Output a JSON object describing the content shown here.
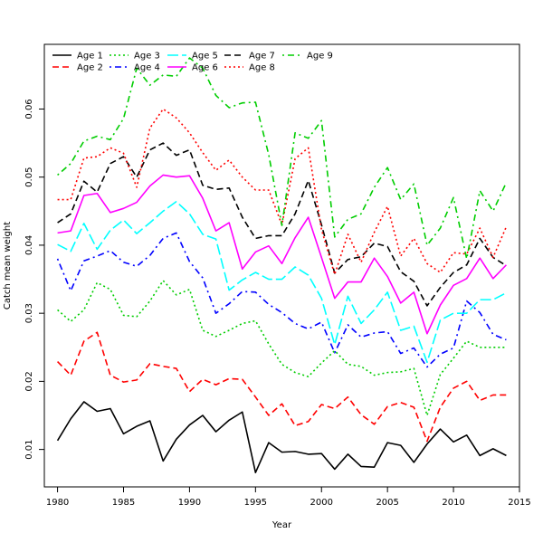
{
  "chart_data": {
    "type": "line",
    "title": "",
    "xlabel": "Year",
    "ylabel": "Catch mean weight",
    "xlim": [
      1979,
      2015
    ],
    "ylim": [
      0.0045,
      0.0695
    ],
    "x_ticks": [
      1980,
      1985,
      1990,
      1995,
      2000,
      2005,
      2010,
      2015
    ],
    "y_ticks": [
      0.01,
      0.02,
      0.03,
      0.04,
      0.05,
      0.06
    ],
    "legend_position": "top-left",
    "grid": false,
    "x": [
      1980,
      1981,
      1982,
      1983,
      1984,
      1985,
      1986,
      1987,
      1988,
      1989,
      1990,
      1991,
      1992,
      1993,
      1994,
      1995,
      1996,
      1997,
      1998,
      1999,
      2000,
      2001,
      2002,
      2003,
      2004,
      2005,
      2006,
      2007,
      2008,
      2009,
      2010,
      2011,
      2012,
      2013,
      2014
    ],
    "series": [
      {
        "name": "Age 1",
        "color": "#000000",
        "dash": "solid",
        "values": [
          0.0113,
          0.0145,
          0.017,
          0.0156,
          0.016,
          0.0123,
          0.0134,
          0.0142,
          0.0083,
          0.0115,
          0.0136,
          0.015,
          0.0126,
          0.0143,
          0.0155,
          0.0066,
          0.011,
          0.0096,
          0.0097,
          0.0093,
          0.0094,
          0.0071,
          0.0093,
          0.0075,
          0.0074,
          0.011,
          0.0106,
          0.0081,
          0.0108,
          0.013,
          0.0111,
          0.0121,
          0.0091,
          0.0101,
          0.0091
        ]
      },
      {
        "name": "Age 2",
        "color": "#ff0000",
        "dash": "dashed",
        "values": [
          0.0229,
          0.0209,
          0.0259,
          0.0272,
          0.0209,
          0.0199,
          0.0202,
          0.0226,
          0.0222,
          0.0219,
          0.0185,
          0.0203,
          0.0195,
          0.0204,
          0.0203,
          0.0177,
          0.015,
          0.0167,
          0.0135,
          0.0141,
          0.0166,
          0.016,
          0.0177,
          0.0151,
          0.0137,
          0.0163,
          0.0169,
          0.0162,
          0.0112,
          0.0162,
          0.019,
          0.02,
          0.0172,
          0.018,
          0.018
        ]
      },
      {
        "name": "Age 3",
        "color": "#00cd00",
        "dash": "dotted",
        "values": [
          0.0305,
          0.0288,
          0.0305,
          0.0345,
          0.0335,
          0.0297,
          0.0295,
          0.0318,
          0.0348,
          0.0327,
          0.0335,
          0.0275,
          0.0266,
          0.0275,
          0.0285,
          0.0289,
          0.0255,
          0.0225,
          0.0213,
          0.0207,
          0.0227,
          0.0245,
          0.0225,
          0.0222,
          0.0209,
          0.0213,
          0.0214,
          0.0219,
          0.015,
          0.021,
          0.0234,
          0.0259,
          0.025,
          0.025,
          0.025
        ]
      },
      {
        "name": "Age 4",
        "color": "#0000ff",
        "dash": "dashdot",
        "values": [
          0.038,
          0.0333,
          0.0377,
          0.0384,
          0.0392,
          0.0375,
          0.0369,
          0.0385,
          0.041,
          0.0418,
          0.0376,
          0.0352,
          0.03,
          0.0314,
          0.0332,
          0.0331,
          0.0313,
          0.0301,
          0.0285,
          0.0277,
          0.0287,
          0.0242,
          0.0283,
          0.0265,
          0.0271,
          0.0273,
          0.0241,
          0.0249,
          0.0221,
          0.024,
          0.0249,
          0.0318,
          0.0301,
          0.0269,
          0.0261
        ]
      },
      {
        "name": "Age 5",
        "color": "#00ffff",
        "dash": "longdash",
        "values": [
          0.0401,
          0.0391,
          0.0432,
          0.0394,
          0.0422,
          0.0437,
          0.0417,
          0.0433,
          0.045,
          0.0464,
          0.0446,
          0.0416,
          0.0409,
          0.0334,
          0.0349,
          0.036,
          0.035,
          0.035,
          0.0368,
          0.0356,
          0.0322,
          0.0254,
          0.0325,
          0.0285,
          0.0305,
          0.0331,
          0.0275,
          0.0281,
          0.0228,
          0.029,
          0.03,
          0.03,
          0.032,
          0.032,
          0.033
        ]
      },
      {
        "name": "Age 6",
        "color": "#ff00ff",
        "dash": "solid",
        "values": [
          0.0418,
          0.0421,
          0.0473,
          0.0476,
          0.0448,
          0.0454,
          0.0463,
          0.0487,
          0.0503,
          0.05,
          0.0502,
          0.0469,
          0.0421,
          0.0433,
          0.0365,
          0.039,
          0.0399,
          0.0373,
          0.0411,
          0.0441,
          0.0382,
          0.0322,
          0.0346,
          0.0346,
          0.0381,
          0.0354,
          0.0315,
          0.0331,
          0.027,
          0.0312,
          0.0341,
          0.0351,
          0.0381,
          0.0351,
          0.0371
        ]
      },
      {
        "name": "Age 7",
        "color": "#000000",
        "dash": "dashed",
        "values": [
          0.0433,
          0.0446,
          0.0494,
          0.0478,
          0.052,
          0.053,
          0.05,
          0.054,
          0.055,
          0.0532,
          0.054,
          0.0488,
          0.0482,
          0.0484,
          0.0441,
          0.041,
          0.0414,
          0.0414,
          0.0446,
          0.0495,
          0.043,
          0.0359,
          0.0379,
          0.0383,
          0.0403,
          0.0398,
          0.0361,
          0.0347,
          0.0311,
          0.0338,
          0.036,
          0.0371,
          0.041,
          0.0382,
          0.037
        ]
      },
      {
        "name": "Age 8",
        "color": "#ff0000",
        "dash": "dotted",
        "values": [
          0.0467,
          0.0467,
          0.0528,
          0.053,
          0.0543,
          0.0535,
          0.0485,
          0.0572,
          0.06,
          0.0587,
          0.0565,
          0.0536,
          0.051,
          0.0525,
          0.05,
          0.0481,
          0.0481,
          0.043,
          0.0527,
          0.0543,
          0.0423,
          0.0357,
          0.0416,
          0.0375,
          0.0419,
          0.0457,
          0.0384,
          0.041,
          0.0373,
          0.036,
          0.0389,
          0.0387,
          0.0425,
          0.0382,
          0.0427
        ]
      },
      {
        "name": "Age 9",
        "color": "#00cd00",
        "dash": "dashdot",
        "values": [
          0.0503,
          0.052,
          0.0553,
          0.056,
          0.0555,
          0.0586,
          0.066,
          0.0635,
          0.065,
          0.0648,
          0.0675,
          0.066,
          0.062,
          0.0602,
          0.0609,
          0.061,
          0.0533,
          0.0429,
          0.0565,
          0.0557,
          0.0583,
          0.0412,
          0.0438,
          0.0446,
          0.0485,
          0.0514,
          0.0467,
          0.049,
          0.04,
          0.0425,
          0.047,
          0.038,
          0.048,
          0.045,
          0.0492
        ]
      }
    ]
  }
}
